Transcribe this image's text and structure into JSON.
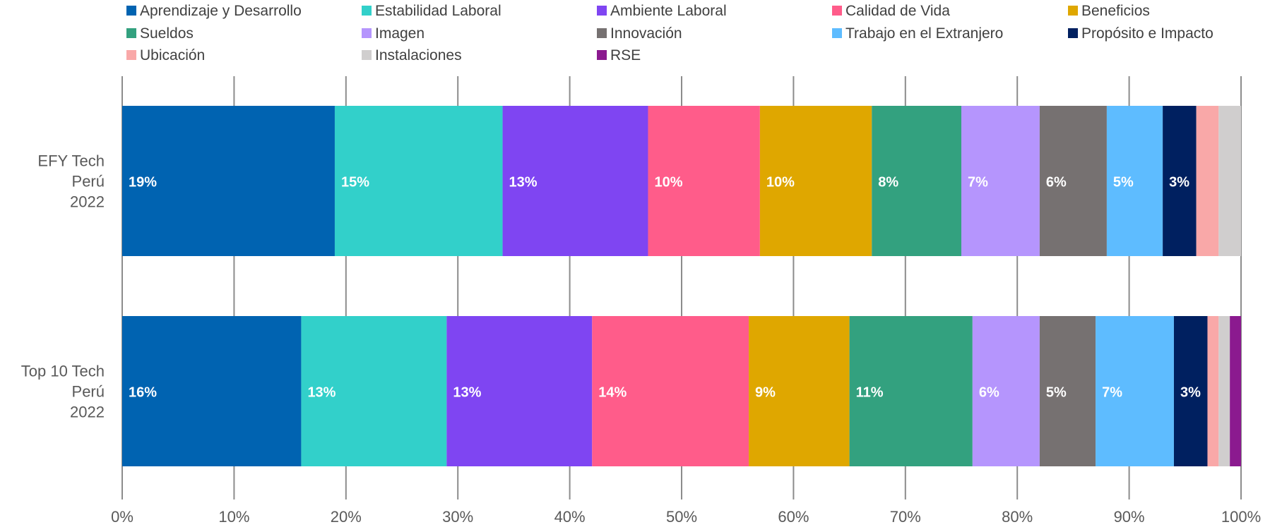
{
  "chart_data": {
    "type": "bar",
    "orientation": "horizontal",
    "stacked": true,
    "categories": [
      [
        "EFY Tech",
        "Perú",
        "2022"
      ],
      [
        "Top 10 Tech",
        "Perú",
        "2022"
      ]
    ],
    "xlim": [
      0,
      100
    ],
    "x_ticks": [
      "0%",
      "10%",
      "20%",
      "30%",
      "40%",
      "50%",
      "60%",
      "70%",
      "80%",
      "90%",
      "100%"
    ],
    "grid": "vertical",
    "legend_position": "top",
    "series": [
      {
        "name": "Aprendizaje y Desarrollo",
        "color": "#0063B1",
        "values": [
          19,
          16
        ],
        "labels": [
          "19%",
          "16%"
        ]
      },
      {
        "name": "Estabilidad Laboral",
        "color": "#32D0CA",
        "values": [
          15,
          13
        ],
        "labels": [
          "15%",
          "13%"
        ]
      },
      {
        "name": "Ambiente Laboral",
        "color": "#7F45F2",
        "values": [
          13,
          13
        ],
        "labels": [
          "13%",
          "13%"
        ]
      },
      {
        "name": "Calidad de Vida",
        "color": "#FF5C8A",
        "values": [
          10,
          14
        ],
        "labels": [
          "10%",
          "14%"
        ]
      },
      {
        "name": "Beneficios",
        "color": "#DFA700",
        "values": [
          10,
          9
        ],
        "labels": [
          "10%",
          "9%"
        ]
      },
      {
        "name": "Sueldos",
        "color": "#33A17F",
        "values": [
          8,
          11
        ],
        "labels": [
          "8%",
          "11%"
        ]
      },
      {
        "name": "Imagen",
        "color": "#B595FD",
        "values": [
          7,
          6
        ],
        "labels": [
          "7%",
          "6%"
        ]
      },
      {
        "name": "Innovación",
        "color": "#767171",
        "values": [
          6,
          5
        ],
        "labels": [
          "6%",
          "5%"
        ]
      },
      {
        "name": "Trabajo en el Extranjero",
        "color": "#5EBCFF",
        "values": [
          5,
          7
        ],
        "labels": [
          "5%",
          "7%"
        ]
      },
      {
        "name": "Propósito e Impacto",
        "color": "#002060",
        "values": [
          3,
          3
        ],
        "labels": [
          "3%",
          "3%"
        ]
      },
      {
        "name": "Ubicación",
        "color": "#F9A8A8",
        "values": [
          2,
          1
        ],
        "labels": [
          "",
          ""
        ]
      },
      {
        "name": "Instalaciones",
        "color": "#D0CECE",
        "values": [
          2,
          1
        ],
        "labels": [
          "",
          ""
        ]
      },
      {
        "name": "RSE",
        "color": "#8B1A8F",
        "values": [
          0,
          1
        ],
        "labels": [
          "",
          ""
        ]
      }
    ]
  }
}
